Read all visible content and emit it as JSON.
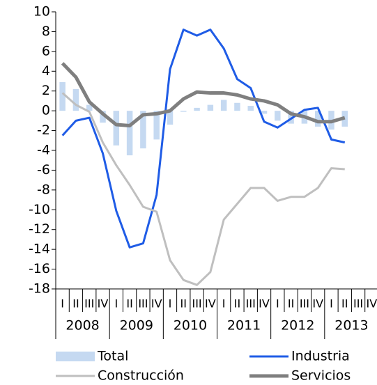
{
  "chart_data": {
    "type": "bar-line",
    "categories": [
      "I",
      "II",
      "III",
      "IV",
      "I",
      "II",
      "III",
      "IV",
      "I",
      "II",
      "III",
      "IV",
      "I",
      "II",
      "III",
      "IV",
      "I",
      "II",
      "III",
      "IV",
      "I",
      "II",
      "III",
      "IV"
    ],
    "years": [
      "2008",
      "2009",
      "2010",
      "2011",
      "2012",
      "2013"
    ],
    "series": [
      {
        "name": "Total",
        "type": "bar",
        "color": "#c5d9f1",
        "values": [
          2.9,
          2.2,
          0.6,
          -1.2,
          -3.5,
          -4.5,
          -3.8,
          -2.9,
          -1.4,
          -0.1,
          0.3,
          0.6,
          1.1,
          0.8,
          0.5,
          -0.3,
          -1.0,
          -1.3,
          -1.3,
          -1.6,
          -1.9,
          -1.6,
          null,
          null
        ]
      },
      {
        "name": "Industria",
        "type": "line",
        "color": "#1f5ce6",
        "width": 3,
        "values": [
          -2.5,
          -1.0,
          -0.7,
          -4.3,
          -10.1,
          -13.8,
          -13.4,
          -8.5,
          4.2,
          8.2,
          7.6,
          8.2,
          6.3,
          3.2,
          2.3,
          -1.1,
          -1.7,
          -0.8,
          0.1,
          0.3,
          -2.9,
          -3.2,
          null,
          null
        ]
      },
      {
        "name": "Construcción",
        "type": "line",
        "color": "#bfbfbf",
        "width": 3,
        "values": [
          1.8,
          0.6,
          -0.1,
          -3.2,
          -5.5,
          -7.5,
          -9.7,
          -10.2,
          -15.1,
          -17.1,
          -17.6,
          -16.3,
          -11.0,
          -9.4,
          -7.8,
          -7.8,
          -9.1,
          -8.7,
          -8.7,
          -7.8,
          -5.8,
          -5.9,
          null,
          null
        ]
      },
      {
        "name": "Servicios",
        "type": "line",
        "color": "#7f7f7f",
        "width": 5,
        "values": [
          4.8,
          3.4,
          0.9,
          -0.3,
          -1.4,
          -1.5,
          -0.4,
          -0.3,
          0.0,
          1.2,
          1.9,
          1.8,
          1.8,
          1.6,
          1.2,
          1.0,
          0.6,
          -0.3,
          -0.6,
          -1.1,
          -1.1,
          -0.7,
          null,
          null
        ]
      }
    ],
    "ylim": [
      -18,
      10
    ],
    "yticks": [
      -18,
      -16,
      -14,
      -12,
      -10,
      -8,
      -6,
      -4,
      -2,
      0,
      2,
      4,
      6,
      8,
      10
    ],
    "grid": false
  }
}
